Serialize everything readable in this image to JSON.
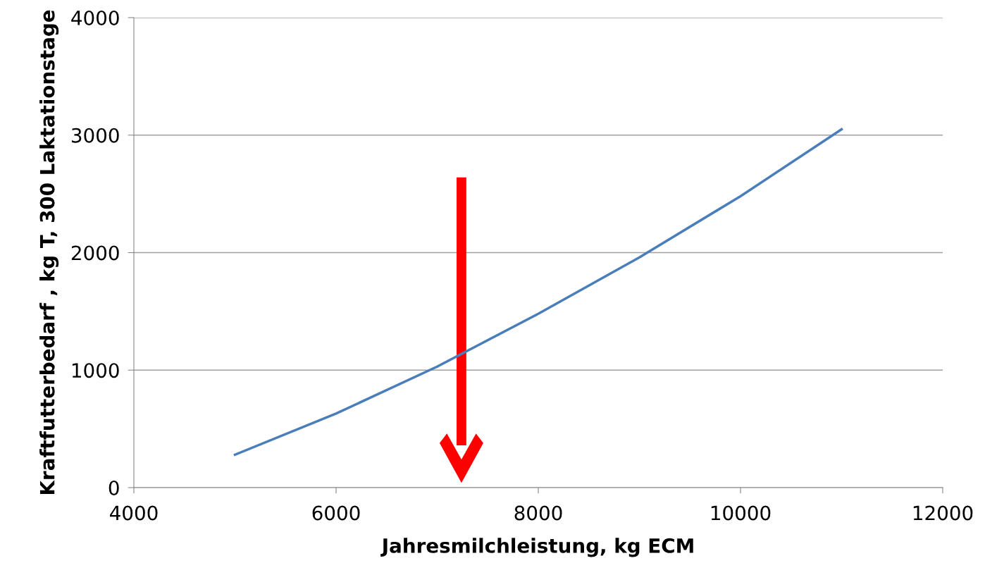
{
  "chart_data": {
    "type": "line",
    "xlabel": "Jahresmilchleistung, kg ECM",
    "ylabel": "Kraftfutterbedarf , kg T, 300 Laktationstage",
    "x": [
      5000,
      6000,
      7000,
      8000,
      9000,
      10000,
      11000
    ],
    "series": [
      {
        "color": "#4a7ebb",
        "values": [
          280,
          630,
          1030,
          1480,
          1960,
          2480,
          3050
        ]
      }
    ],
    "xlim": [
      4000,
      12000
    ],
    "xticks": [
      4000,
      6000,
      8000,
      10000,
      12000
    ],
    "ylim": [
      0,
      4000
    ],
    "yticks": [
      0,
      1000,
      2000,
      3000,
      4000
    ],
    "grid": "y",
    "marker": "none",
    "line_style": "solid"
  }
}
